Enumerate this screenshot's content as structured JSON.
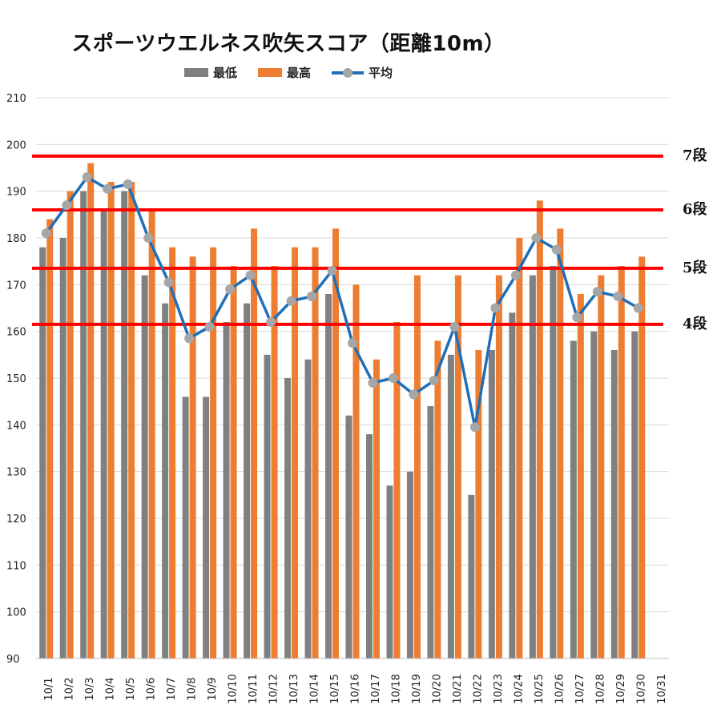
{
  "chart_data": {
    "type": "bar",
    "title": "スポーツウエルネス吹矢スコア（距離10m）",
    "xlabel": "",
    "ylabel": "",
    "ylim": [
      90,
      210
    ],
    "yticks": [
      90,
      100,
      110,
      120,
      130,
      140,
      150,
      160,
      170,
      180,
      190,
      200,
      210
    ],
    "grid": true,
    "legend_position": "top",
    "categories": [
      "10/1",
      "10/2",
      "10/3",
      "10/4",
      "10/5",
      "10/6",
      "10/7",
      "10/8",
      "10/9",
      "10/10",
      "10/11",
      "10/12",
      "10/13",
      "10/14",
      "10/15",
      "10/16",
      "10/17",
      "10/18",
      "10/19",
      "10/20",
      "10/21",
      "10/22",
      "10/23",
      "10/24",
      "10/25",
      "10/26",
      "10/27",
      "10/28",
      "10/29",
      "10/30",
      "10/31"
    ],
    "series": [
      {
        "name": "最低",
        "type": "bar",
        "color": "#808080",
        "values": [
          178,
          180,
          190,
          186,
          190,
          172,
          166,
          146,
          146,
          162,
          166,
          155,
          150,
          154,
          168,
          142,
          138,
          127,
          130,
          144,
          155,
          125,
          156,
          164,
          172,
          174,
          158,
          160,
          156,
          160,
          null
        ]
      },
      {
        "name": "最高",
        "type": "bar",
        "color": "#ed7d31",
        "values": [
          184,
          190,
          196,
          192,
          192,
          186,
          178,
          176,
          178,
          174,
          182,
          174,
          178,
          178,
          182,
          170,
          154,
          162,
          172,
          158,
          172,
          156,
          172,
          180,
          188,
          182,
          168,
          172,
          174,
          176,
          null
        ]
      },
      {
        "name": "平均",
        "type": "line",
        "color": "#1f6fb8",
        "marker_color": "#a6a6a6",
        "values": [
          181,
          187,
          193,
          190.5,
          191.5,
          180,
          170.5,
          158.5,
          161,
          169,
          172,
          162,
          166.5,
          167.5,
          173,
          157.5,
          149,
          150,
          146.5,
          149.5,
          161,
          139.5,
          165,
          172,
          180,
          177.5,
          163,
          168.5,
          167.5,
          165,
          null
        ]
      }
    ],
    "reference_lines": [
      {
        "label": "7段",
        "value": 197.5,
        "color": "#ff0000"
      },
      {
        "label": "6段",
        "value": 186,
        "color": "#ff0000"
      },
      {
        "label": "5段",
        "value": 173.5,
        "color": "#ff0000"
      },
      {
        "label": "4段",
        "value": 161.5,
        "color": "#ff0000"
      }
    ]
  }
}
